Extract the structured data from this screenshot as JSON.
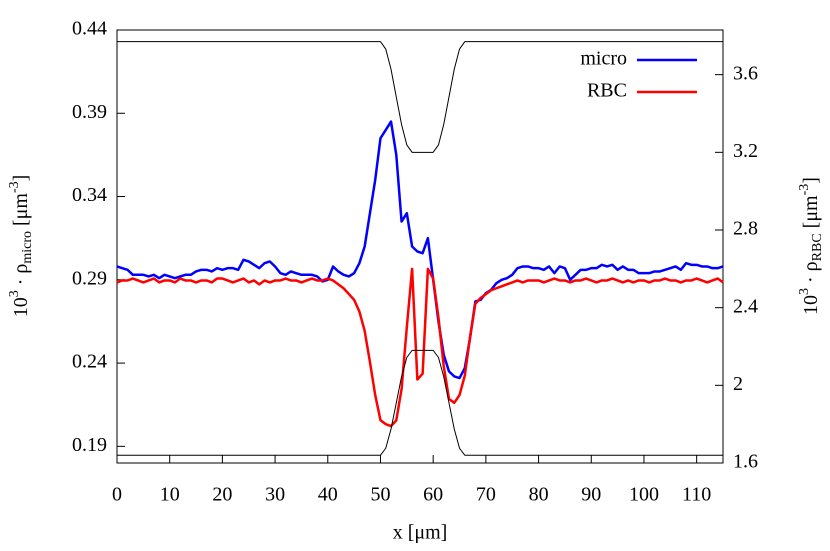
{
  "chart_data": {
    "type": "line",
    "xlabel": "x [μm]",
    "ylabel": {
      "base": "10",
      "exp": "3",
      "mid": " · ρ",
      "sub": "micro",
      "unit": " [μm",
      "unitexp": "-3",
      "end": "]"
    },
    "y2label": {
      "base": "10",
      "exp": "3",
      "mid": " · ρ",
      "sub": "RBC",
      "unit": " [μm",
      "unitexp": "-3",
      "end": "]"
    },
    "xlim": [
      0,
      115
    ],
    "ylim": [
      0.18,
      0.44
    ],
    "y2lim": [
      1.6,
      3.83
    ],
    "xticks": [
      0,
      10,
      20,
      30,
      40,
      50,
      60,
      70,
      80,
      90,
      100,
      110
    ],
    "yticks": [
      0.19,
      0.24,
      0.29,
      0.34,
      0.39,
      0.44
    ],
    "y2ticks": [
      1.6,
      2,
      2.4,
      2.8,
      3.2,
      3.6
    ],
    "legend": "top-right",
    "x": [
      0,
      1,
      2,
      3,
      4,
      5,
      6,
      7,
      8,
      9,
      10,
      11,
      12,
      13,
      14,
      15,
      16,
      17,
      18,
      19,
      20,
      21,
      22,
      23,
      24,
      25,
      26,
      27,
      28,
      29,
      30,
      31,
      32,
      33,
      34,
      35,
      36,
      37,
      38,
      39,
      40,
      41,
      42,
      43,
      44,
      45,
      46,
      47,
      48,
      49,
      50,
      51,
      52,
      53,
      54,
      55,
      56,
      57,
      58,
      59,
      60,
      61,
      62,
      63,
      64,
      65,
      66,
      67,
      68,
      69,
      70,
      71,
      72,
      73,
      74,
      75,
      76,
      77,
      78,
      79,
      80,
      81,
      82,
      83,
      84,
      85,
      86,
      87,
      88,
      89,
      90,
      91,
      92,
      93,
      94,
      95,
      96,
      97,
      98,
      99,
      100,
      101,
      102,
      103,
      104,
      105,
      106,
      107,
      108,
      109,
      110,
      111,
      112,
      113,
      114,
      115
    ],
    "series": [
      {
        "name": "micro",
        "color": "#0000ff",
        "axis": "y",
        "values": [
          0.298,
          0.297,
          0.296,
          0.293,
          0.293,
          0.293,
          0.292,
          0.293,
          0.291,
          0.293,
          0.292,
          0.291,
          0.292,
          0.293,
          0.293,
          0.295,
          0.296,
          0.296,
          0.295,
          0.297,
          0.296,
          0.297,
          0.297,
          0.296,
          0.302,
          0.301,
          0.299,
          0.297,
          0.3,
          0.301,
          0.298,
          0.294,
          0.293,
          0.295,
          0.294,
          0.293,
          0.293,
          0.293,
          0.292,
          0.289,
          0.29,
          0.298,
          0.295,
          0.293,
          0.292,
          0.294,
          0.3,
          0.31,
          0.33,
          0.35,
          0.375,
          0.38,
          0.385,
          0.365,
          0.325,
          0.33,
          0.31,
          0.307,
          0.306,
          0.315,
          0.29,
          0.265,
          0.245,
          0.235,
          0.232,
          0.231,
          0.237,
          0.255,
          0.277,
          0.278,
          0.282,
          0.284,
          0.288,
          0.29,
          0.291,
          0.293,
          0.297,
          0.298,
          0.298,
          0.297,
          0.297,
          0.296,
          0.298,
          0.294,
          0.298,
          0.297,
          0.29,
          0.293,
          0.296,
          0.296,
          0.297,
          0.297,
          0.299,
          0.298,
          0.299,
          0.296,
          0.298,
          0.296,
          0.296,
          0.294,
          0.294,
          0.294,
          0.295,
          0.295,
          0.296,
          0.297,
          0.298,
          0.296,
          0.3,
          0.299,
          0.299,
          0.298,
          0.298,
          0.297,
          0.297,
          0.298
        ]
      },
      {
        "name": "RBC",
        "color": "#ff0000",
        "axis": "y2",
        "values": [
          2.53,
          2.54,
          2.54,
          2.55,
          2.54,
          2.53,
          2.54,
          2.55,
          2.53,
          2.54,
          2.54,
          2.53,
          2.55,
          2.54,
          2.54,
          2.53,
          2.54,
          2.54,
          2.53,
          2.55,
          2.55,
          2.54,
          2.53,
          2.54,
          2.55,
          2.53,
          2.54,
          2.52,
          2.54,
          2.53,
          2.54,
          2.54,
          2.55,
          2.54,
          2.54,
          2.53,
          2.54,
          2.55,
          2.54,
          2.54,
          2.55,
          2.54,
          2.52,
          2.5,
          2.47,
          2.44,
          2.38,
          2.28,
          2.12,
          1.95,
          1.82,
          1.8,
          1.79,
          1.82,
          1.98,
          2.3,
          2.6,
          2.03,
          2.06,
          2.6,
          2.55,
          2.35,
          2.1,
          1.93,
          1.91,
          1.95,
          2.05,
          2.25,
          2.42,
          2.45,
          2.47,
          2.49,
          2.5,
          2.51,
          2.52,
          2.53,
          2.54,
          2.53,
          2.54,
          2.54,
          2.54,
          2.53,
          2.54,
          2.55,
          2.54,
          2.54,
          2.53,
          2.54,
          2.54,
          2.55,
          2.54,
          2.53,
          2.54,
          2.54,
          2.55,
          2.54,
          2.53,
          2.54,
          2.53,
          2.54,
          2.54,
          2.53,
          2.54,
          2.54,
          2.55,
          2.54,
          2.54,
          2.53,
          2.54,
          2.54,
          2.55,
          2.54,
          2.53,
          2.54,
          2.55,
          2.53
        ]
      },
      {
        "color": "#000000",
        "axis": "y2",
        "x": [
          0,
          50,
          51,
          52,
          53,
          54,
          55,
          56,
          60,
          61,
          62,
          63,
          64,
          65,
          66,
          115
        ],
        "values": [
          3.77,
          3.77,
          3.732,
          3.628,
          3.485,
          3.343,
          3.238,
          3.2,
          3.2,
          3.238,
          3.343,
          3.485,
          3.628,
          3.732,
          3.77,
          3.77
        ]
      },
      {
        "color": "#000000",
        "axis": "y2",
        "x": [
          0,
          50,
          51,
          52,
          53,
          54,
          55,
          56,
          60,
          61,
          62,
          63,
          64,
          65,
          66,
          115
        ],
        "values": [
          1.64,
          1.64,
          1.676,
          1.775,
          1.91,
          2.045,
          2.144,
          2.18,
          2.18,
          2.144,
          2.045,
          1.91,
          1.775,
          1.676,
          1.64,
          1.64
        ]
      }
    ]
  }
}
